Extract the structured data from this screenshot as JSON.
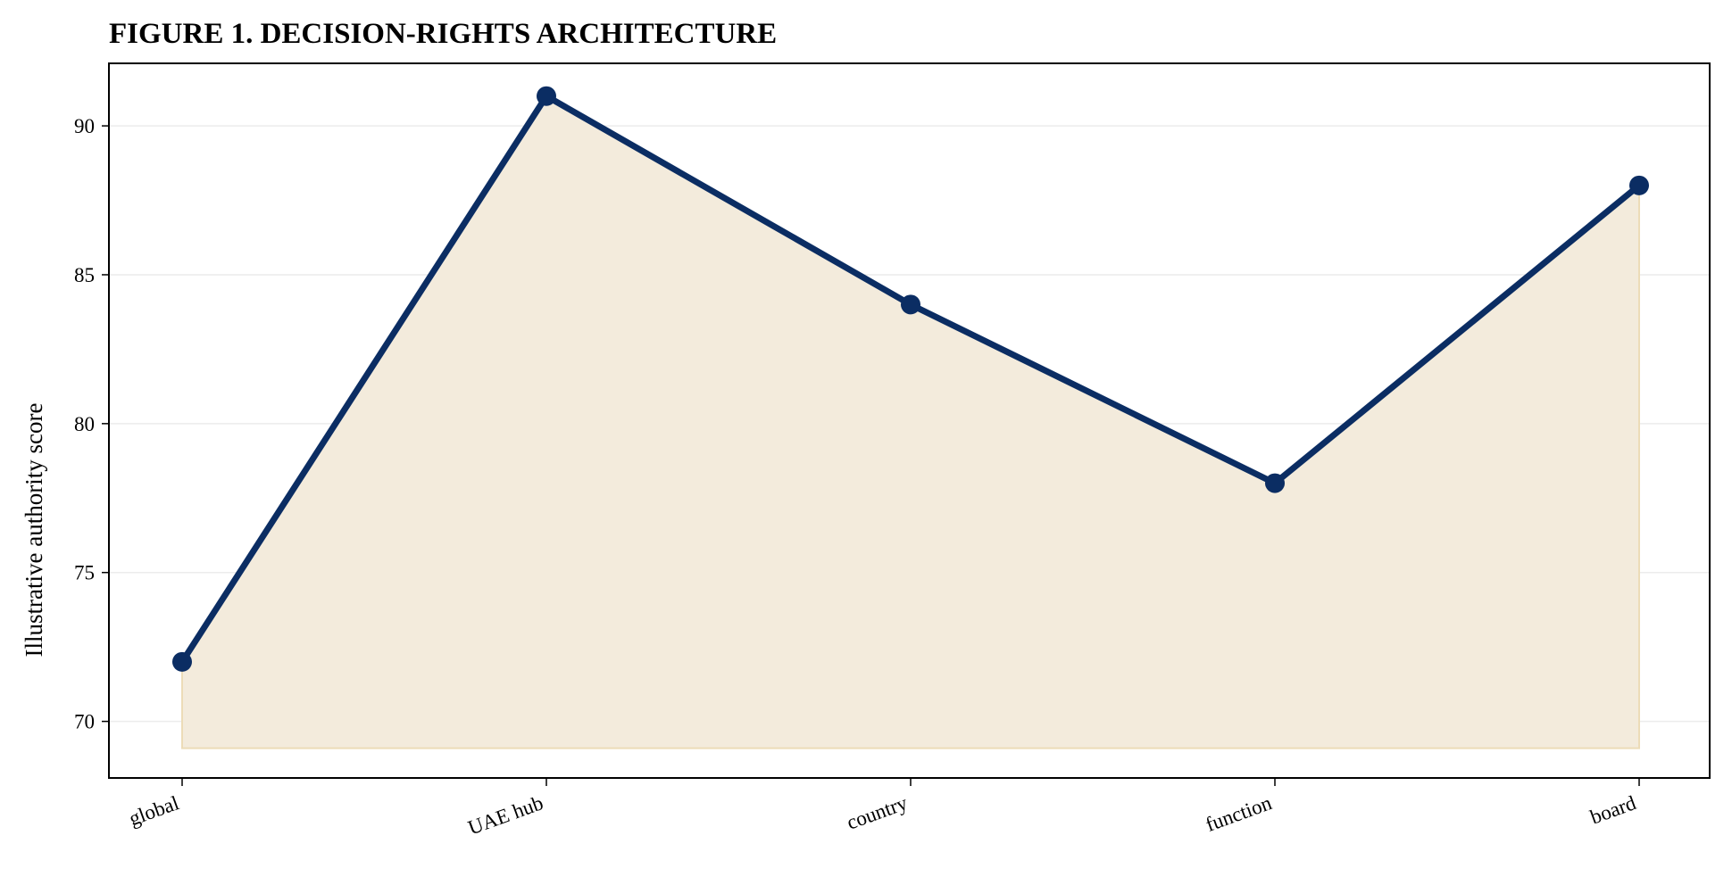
{
  "chart_data": {
    "type": "area",
    "title": "FIGURE 1. DECISION-RIGHTS ARCHITECTURE",
    "xlabel": "",
    "ylabel": "Illustrative authority score",
    "categories": [
      "global",
      "UAE hub",
      "country",
      "function",
      "board"
    ],
    "series": [
      {
        "values": [
          72,
          91,
          84,
          78,
          88
        ]
      }
    ],
    "fill_baseline": 69.1,
    "ylim": [
      68.1,
      92.1
    ],
    "yticks": [
      70,
      75,
      80,
      85,
      90
    ],
    "grid": "horizontal",
    "legend": "none",
    "colors": {
      "line": "#0b2d63",
      "fill": "#f3ebdc",
      "fill_edge": "#ecdcb8",
      "grid": "#ececec",
      "axis": "#000000"
    }
  }
}
